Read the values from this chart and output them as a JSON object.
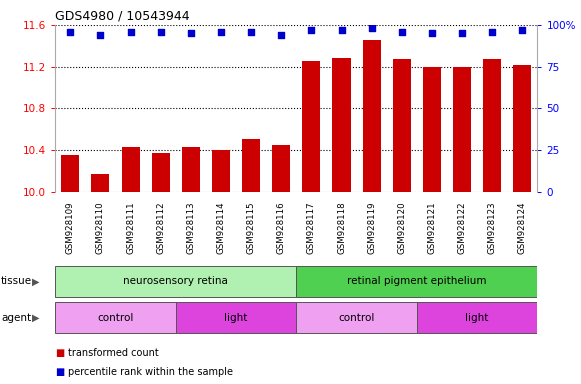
{
  "title": "GDS4980 / 10543944",
  "samples": [
    "GSM928109",
    "GSM928110",
    "GSM928111",
    "GSM928112",
    "GSM928113",
    "GSM928114",
    "GSM928115",
    "GSM928116",
    "GSM928117",
    "GSM928118",
    "GSM928119",
    "GSM928120",
    "GSM928121",
    "GSM928122",
    "GSM928123",
    "GSM928124"
  ],
  "transformed_count": [
    10.35,
    10.17,
    10.43,
    10.37,
    10.43,
    10.4,
    10.51,
    10.45,
    11.25,
    11.28,
    11.46,
    11.27,
    11.2,
    11.2,
    11.27,
    11.22
  ],
  "percentile_rank": [
    96,
    94,
    96,
    96,
    95,
    96,
    96,
    94,
    97,
    97,
    98,
    96,
    95,
    95,
    96,
    97
  ],
  "ylim_left": [
    10.0,
    11.6
  ],
  "ylim_right": [
    0,
    100
  ],
  "yticks_left": [
    10.0,
    10.4,
    10.8,
    11.2,
    11.6
  ],
  "yticks_right": [
    0,
    25,
    50,
    75,
    100
  ],
  "bar_color": "#cc0000",
  "dot_color": "#0000cc",
  "bg_color": "#ffffff",
  "xtick_bg": "#d0d0d0",
  "tissue_groups": [
    {
      "label": "neurosensory retina",
      "start": 0,
      "end": 8,
      "color": "#b0f0b0"
    },
    {
      "label": "retinal pigment epithelium",
      "start": 8,
      "end": 16,
      "color": "#50d050"
    }
  ],
  "agent_groups": [
    {
      "label": "control",
      "start": 0,
      "end": 4,
      "color": "#f0a0f0"
    },
    {
      "label": "light",
      "start": 4,
      "end": 8,
      "color": "#dd44dd"
    },
    {
      "label": "control",
      "start": 8,
      "end": 12,
      "color": "#f0a0f0"
    },
    {
      "label": "light",
      "start": 12,
      "end": 16,
      "color": "#dd44dd"
    }
  ],
  "legend_items": [
    {
      "label": "transformed count",
      "color": "#cc0000"
    },
    {
      "label": "percentile rank within the sample",
      "color": "#0000cc"
    }
  ],
  "tissue_label": "tissue",
  "agent_label": "agent"
}
